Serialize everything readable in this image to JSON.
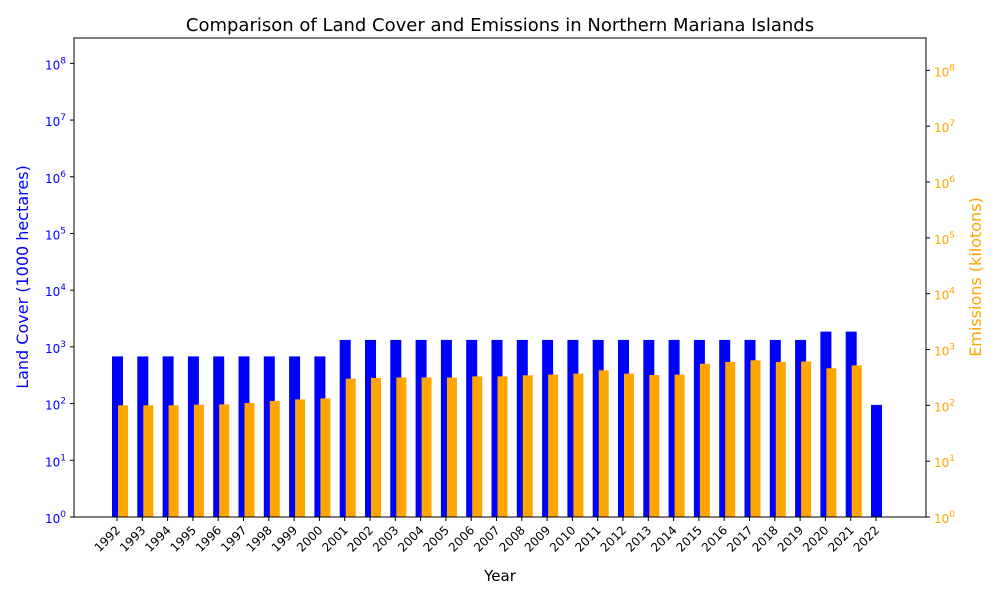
{
  "chart_data": {
    "type": "bar",
    "title": "Comparison of Land Cover and Emissions in Northern Mariana Islands",
    "xlabel": "Year",
    "ylabel_left": "Land Cover (1000 hectares)",
    "ylabel_right": "Emissions (kilotons)",
    "yscale": "log",
    "ylim_left": [
      1,
      280000000
    ],
    "ylim_right": [
      1,
      380000000
    ],
    "grid": false,
    "categories": [
      "1992",
      "1993",
      "1994",
      "1995",
      "1996",
      "1997",
      "1998",
      "1999",
      "2000",
      "2001",
      "2002",
      "2003",
      "2004",
      "2005",
      "2006",
      "2007",
      "2008",
      "2009",
      "2010",
      "2011",
      "2012",
      "2013",
      "2014",
      "2015",
      "2016",
      "2017",
      "2018",
      "2019",
      "2020",
      "2021",
      "2022"
    ],
    "series": [
      {
        "axis": "left",
        "color": "#0000ff",
        "values": [
          680,
          680,
          680,
          680,
          680,
          680,
          680,
          680,
          680,
          1330,
          1330,
          1330,
          1330,
          1330,
          1330,
          1330,
          1330,
          1330,
          1330,
          1330,
          1330,
          1330,
          1330,
          1330,
          1330,
          1330,
          1330,
          1330,
          1860,
          1860,
          95
        ]
      },
      {
        "axis": "right",
        "color": "#ffa500",
        "values": [
          100,
          100,
          100,
          103,
          104,
          110,
          120,
          128,
          133,
          300,
          310,
          315,
          315,
          315,
          330,
          330,
          345,
          355,
          370,
          425,
          370,
          350,
          355,
          555,
          600,
          640,
          600,
          610,
          460,
          520,
          null
        ]
      }
    ],
    "left_ticks": [
      {
        "value": 1,
        "base": "10",
        "exp": "0"
      },
      {
        "value": 10,
        "base": "10",
        "exp": "1"
      },
      {
        "value": 100,
        "base": "10",
        "exp": "2"
      },
      {
        "value": 1000,
        "base": "10",
        "exp": "3"
      },
      {
        "value": 10000,
        "base": "10",
        "exp": "4"
      },
      {
        "value": 100000,
        "base": "10",
        "exp": "5"
      },
      {
        "value": 1000000,
        "base": "10",
        "exp": "6"
      },
      {
        "value": 10000000,
        "base": "10",
        "exp": "7"
      },
      {
        "value": 100000000,
        "base": "10",
        "exp": "8"
      }
    ],
    "right_ticks": [
      {
        "value": 1,
        "base": "10",
        "exp": "0"
      },
      {
        "value": 10,
        "base": "10",
        "exp": "1"
      },
      {
        "value": 100,
        "base": "10",
        "exp": "2"
      },
      {
        "value": 1000,
        "base": "10",
        "exp": "3"
      },
      {
        "value": 10000,
        "base": "10",
        "exp": "4"
      },
      {
        "value": 100000,
        "base": "10",
        "exp": "5"
      },
      {
        "value": 1000000,
        "base": "10",
        "exp": "6"
      },
      {
        "value": 10000000,
        "base": "10",
        "exp": "7"
      },
      {
        "value": 100000000,
        "base": "10",
        "exp": "8"
      }
    ],
    "colors": {
      "left_axis": "#0000ff",
      "right_axis": "#ffa500",
      "text": "#000000"
    }
  }
}
